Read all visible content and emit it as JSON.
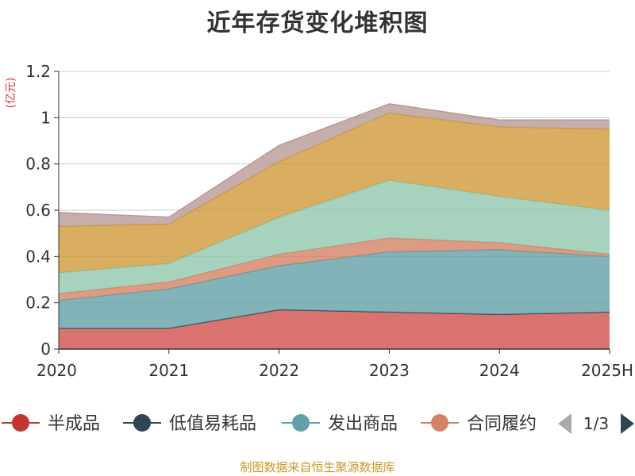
{
  "chart_data": {
    "type": "area",
    "title": "近年存货变化堆积图",
    "ylabel": "(亿元)",
    "categories": [
      "2020",
      "2021",
      "2022",
      "2023",
      "2024",
      "2025H"
    ],
    "y_ticks": [
      "0",
      "0.2",
      "0.4",
      "0.6",
      "0.8",
      "1",
      "1.2"
    ],
    "ylim": [
      0,
      1.2
    ],
    "stacked": true,
    "grid": true,
    "legend_position": "bottom",
    "series": [
      {
        "name": "半成品",
        "color": "#d0504c",
        "values": [
          0.09,
          0.09,
          0.17,
          0.16,
          0.15,
          0.16
        ]
      },
      {
        "name": "低值易耗品",
        "color": "#2f4554",
        "values": [
          0,
          0,
          0,
          0,
          0,
          0
        ]
      },
      {
        "name": "发出商品",
        "color": "#61a0a8",
        "values": [
          0.12,
          0.17,
          0.19,
          0.26,
          0.28,
          0.24
        ]
      },
      {
        "name": "合同履约成本",
        "color": "#d48265",
        "values": [
          0.03,
          0.03,
          0.05,
          0.06,
          0.03,
          0.01
        ]
      },
      {
        "name": "",
        "color": "#91c7ae",
        "values": [
          0.09,
          0.08,
          0.16,
          0.25,
          0.2,
          0.19
        ]
      },
      {
        "name": "",
        "color": "#d09a3a",
        "values": [
          0.2,
          0.17,
          0.24,
          0.29,
          0.3,
          0.35
        ]
      },
      {
        "name": "",
        "color": "#b79a96",
        "values": [
          0.06,
          0.03,
          0.07,
          0.04,
          0.03,
          0.04
        ]
      }
    ]
  },
  "legend": {
    "items": [
      {
        "label": "半成品",
        "color": "#c33531"
      },
      {
        "label": "低值易耗品",
        "color": "#2f4554"
      },
      {
        "label": "发出商品",
        "color": "#61a0a8"
      },
      {
        "label": "合同履约",
        "color": "#d48265"
      }
    ],
    "page_indicator": "1/3"
  },
  "source_note": "制图数据来自恒生聚源数据库"
}
